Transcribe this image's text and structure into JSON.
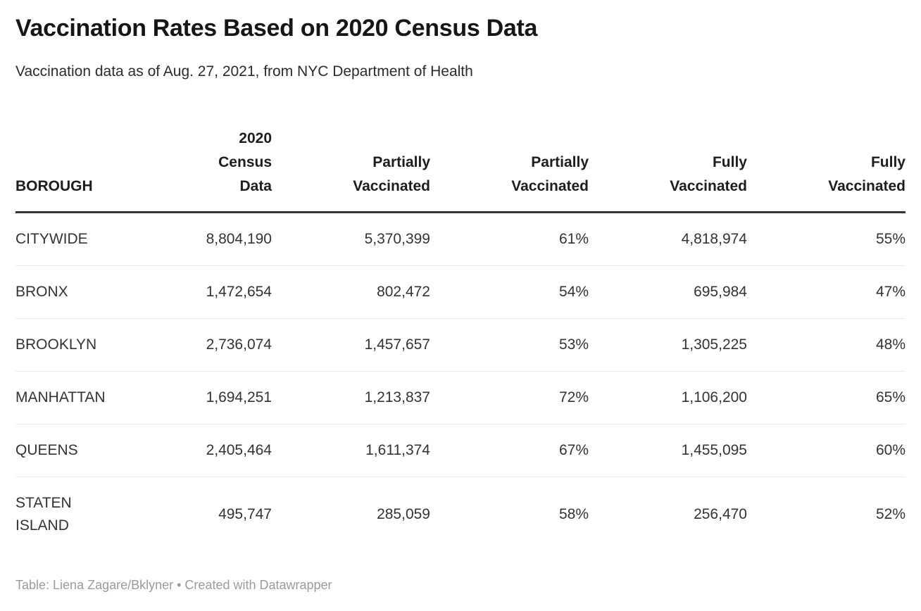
{
  "title": "Vaccination Rates Based on 2020 Census Data",
  "subtitle": "Vaccination data as of Aug. 27, 2021, from NYC Department of Health",
  "footer": "Table: Liena Zagare/Bklyner • Created with Datawrapper",
  "colors": {
    "title_text": "#161616",
    "body_text": "#333333",
    "header_rule": "#333333",
    "row_divider": "#ebebeb",
    "footer_text": "#9b9b9b",
    "background": "#ffffff"
  },
  "table": {
    "columns": [
      {
        "label": "BOROUGH",
        "align": "left"
      },
      {
        "label": "2020 Census Data",
        "align": "right"
      },
      {
        "label": "Partially Vaccinated",
        "align": "right"
      },
      {
        "label": "Partially Vaccinated",
        "align": "right"
      },
      {
        "label": "Fully Vaccinated",
        "align": "right"
      },
      {
        "label": "Fully Vaccinated",
        "align": "right"
      }
    ],
    "rows": [
      [
        "CITYWIDE",
        "8,804,190",
        "5,370,399",
        "61%",
        "4,818,974",
        "55%"
      ],
      [
        "BRONX",
        "1,472,654",
        "802,472",
        "54%",
        "695,984",
        "47%"
      ],
      [
        "BROOKLYN",
        "2,736,074",
        "1,457,657",
        "53%",
        "1,305,225",
        "48%"
      ],
      [
        "MANHATTAN",
        "1,694,251",
        "1,213,837",
        "72%",
        "1,106,200",
        "65%"
      ],
      [
        "QUEENS",
        "2,405,464",
        "1,611,374",
        "67%",
        "1,455,095",
        "60%"
      ],
      [
        "STATEN ISLAND",
        "495,747",
        "285,059",
        "58%",
        "256,470",
        "52%"
      ]
    ]
  },
  "chart_data": {
    "type": "table",
    "title": "Vaccination Rates Based on 2020 Census Data",
    "subtitle": "Vaccination data as of Aug. 27, 2021, from NYC Department of Health",
    "columns": [
      "BOROUGH",
      "2020 Census Data",
      "Partially Vaccinated",
      "Partially Vaccinated (%)",
      "Fully Vaccinated",
      "Fully Vaccinated (%)"
    ],
    "rows": [
      {
        "borough": "CITYWIDE",
        "census_2020": 8804190,
        "partially_vaccinated": 5370399,
        "partially_vaccinated_pct": 61,
        "fully_vaccinated": 4818974,
        "fully_vaccinated_pct": 55
      },
      {
        "borough": "BRONX",
        "census_2020": 1472654,
        "partially_vaccinated": 802472,
        "partially_vaccinated_pct": 54,
        "fully_vaccinated": 695984,
        "fully_vaccinated_pct": 47
      },
      {
        "borough": "BROOKLYN",
        "census_2020": 2736074,
        "partially_vaccinated": 1457657,
        "partially_vaccinated_pct": 53,
        "fully_vaccinated": 1305225,
        "fully_vaccinated_pct": 48
      },
      {
        "borough": "MANHATTAN",
        "census_2020": 1694251,
        "partially_vaccinated": 1213837,
        "partially_vaccinated_pct": 72,
        "fully_vaccinated": 1106200,
        "fully_vaccinated_pct": 65
      },
      {
        "borough": "QUEENS",
        "census_2020": 2405464,
        "partially_vaccinated": 1611374,
        "partially_vaccinated_pct": 67,
        "fully_vaccinated": 1455095,
        "fully_vaccinated_pct": 60
      },
      {
        "borough": "STATEN ISLAND",
        "census_2020": 495747,
        "partially_vaccinated": 285059,
        "partially_vaccinated_pct": 58,
        "fully_vaccinated": 256470,
        "fully_vaccinated_pct": 52
      }
    ],
    "source": "Table: Liena Zagare/Bklyner • Created with Datawrapper"
  }
}
